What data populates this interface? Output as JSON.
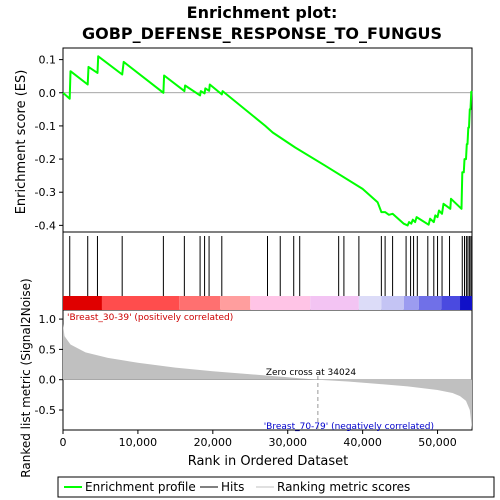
{
  "chart_data": {
    "type": "line",
    "title_line1": "Enrichment plot:",
    "title_line2": "GOBP_DEFENSE_RESPONSE_TO_FUNGUS",
    "x_axis_label": "Rank in Ordered Dataset",
    "x_ticks": [
      0,
      10000,
      20000,
      30000,
      40000,
      50000
    ],
    "x_tick_labels": [
      "0",
      "10,000",
      "20,000",
      "30,000",
      "40,000",
      "50,000"
    ],
    "xlim": [
      0,
      54600
    ],
    "top_panel": {
      "ylabel": "Enrichment score (ES)",
      "ylim": [
        -0.42,
        0.135
      ],
      "y_ticks": [
        0.1,
        0.0,
        -0.1,
        -0.2,
        -0.3,
        -0.4
      ],
      "y_tick_labels": [
        "0.1",
        "0.0",
        "-0.1",
        "-0.2",
        "-0.3",
        "-0.4"
      ],
      "series_name": "Enrichment profile",
      "color": "#00ff00",
      "points": [
        [
          0,
          0
        ],
        [
          900,
          -0.018
        ],
        [
          1000,
          0.065
        ],
        [
          3300,
          0.025
        ],
        [
          3400,
          0.078
        ],
        [
          4600,
          0.06
        ],
        [
          4700,
          0.11
        ],
        [
          7900,
          0.055
        ],
        [
          8100,
          0.093
        ],
        [
          13400,
          0.0
        ],
        [
          13500,
          0.052
        ],
        [
          16200,
          0.005
        ],
        [
          16300,
          0.022
        ],
        [
          18300,
          -0.008
        ],
        [
          18400,
          0.005
        ],
        [
          18900,
          -0.002
        ],
        [
          19000,
          0.013
        ],
        [
          19500,
          0.006
        ],
        [
          19600,
          0.025
        ],
        [
          21200,
          -0.005
        ],
        [
          21300,
          0.005
        ],
        [
          27000,
          -0.1
        ],
        [
          28000,
          -0.12
        ],
        [
          31000,
          -0.165
        ],
        [
          35000,
          -0.22
        ],
        [
          40000,
          -0.29
        ],
        [
          42000,
          -0.33
        ],
        [
          42500,
          -0.36
        ],
        [
          43000,
          -0.36
        ],
        [
          43500,
          -0.368
        ],
        [
          44000,
          -0.365
        ],
        [
          45500,
          -0.395
        ],
        [
          46000,
          -0.4
        ],
        [
          46200,
          -0.39
        ],
        [
          46500,
          -0.395
        ],
        [
          46700,
          -0.383
        ],
        [
          47000,
          -0.39
        ],
        [
          47200,
          -0.375
        ],
        [
          48800,
          -0.398
        ],
        [
          49000,
          -0.38
        ],
        [
          49500,
          -0.39
        ],
        [
          49700,
          -0.37
        ],
        [
          50000,
          -0.375
        ],
        [
          50200,
          -0.355
        ],
        [
          50600,
          -0.365
        ],
        [
          50800,
          -0.335
        ],
        [
          51700,
          -0.35
        ],
        [
          51800,
          -0.32
        ],
        [
          53200,
          -0.35
        ],
        [
          53300,
          -0.24
        ],
        [
          53500,
          -0.24
        ],
        [
          53600,
          -0.2
        ],
        [
          53800,
          -0.2
        ],
        [
          53900,
          -0.155
        ],
        [
          54000,
          -0.155
        ],
        [
          54100,
          -0.105
        ],
        [
          54200,
          -0.105
        ],
        [
          54300,
          -0.05
        ],
        [
          54400,
          -0.05
        ],
        [
          54500,
          0.003
        ],
        [
          54600,
          0.0
        ]
      ]
    },
    "hits": [
      900,
      3300,
      4600,
      7900,
      13400,
      16200,
      18300,
      18900,
      19500,
      21200,
      27300,
      29000,
      30800,
      31600,
      36800,
      37500,
      39500,
      42500,
      43000,
      44000,
      45800,
      46400,
      46800,
      47300,
      48700,
      49500,
      50000,
      50600,
      51600,
      53300,
      53600,
      53850,
      54050,
      54250,
      54450
    ],
    "bottom_panel": {
      "ylabel": "Ranked list metric (Signal2Noise)",
      "ylim": [
        -0.83,
        1.15
      ],
      "y_ticks": [
        1.0,
        0.5,
        0.0,
        -0.5
      ],
      "y_tick_labels": [
        "1.0",
        "0.5",
        "0.0",
        "-0.5"
      ],
      "series_name": "Ranking metric scores",
      "color": "#c0c0c0",
      "points": [
        [
          0,
          0.92
        ],
        [
          200,
          0.72
        ],
        [
          1000,
          0.58
        ],
        [
          3000,
          0.45
        ],
        [
          6000,
          0.36
        ],
        [
          10000,
          0.28
        ],
        [
          15000,
          0.2
        ],
        [
          20000,
          0.14
        ],
        [
          25000,
          0.09
        ],
        [
          30000,
          0.04
        ],
        [
          34024,
          0.0
        ],
        [
          38000,
          -0.03
        ],
        [
          42000,
          -0.07
        ],
        [
          46000,
          -0.11
        ],
        [
          50000,
          -0.17
        ],
        [
          52000,
          -0.22
        ],
        [
          53000,
          -0.27
        ],
        [
          53800,
          -0.35
        ],
        [
          54300,
          -0.5
        ],
        [
          54600,
          -0.82
        ]
      ],
      "zero_cross_label": "Zero cross at 34024",
      "zero_cross_x": 34024,
      "positive_label": "'Breast_30-39' (positively correlated)",
      "negative_label": "'Breast_70-79' (negatively correlated)",
      "positive_color": "#cc0000",
      "negative_color": "#0000cc"
    },
    "heat_bar": {
      "segments": [
        [
          0,
          5200,
          "#e00000"
        ],
        [
          5200,
          15500,
          "#ff4d4d"
        ],
        [
          15500,
          21000,
          "#ff7070"
        ],
        [
          21000,
          25000,
          "#ff9e9e"
        ],
        [
          25000,
          33000,
          "#ffc4e6"
        ],
        [
          33000,
          39500,
          "#f3c4f3"
        ],
        [
          39500,
          42500,
          "#dcdcf8"
        ],
        [
          42500,
          45500,
          "#c4c4f4"
        ],
        [
          45500,
          47500,
          "#9c9cf0"
        ],
        [
          47500,
          50500,
          "#7070e8"
        ],
        [
          50500,
          53000,
          "#4a4ae0"
        ],
        [
          53000,
          54600,
          "#1010c8"
        ]
      ]
    },
    "legend": [
      {
        "label": "Enrichment profile",
        "color": "#00ff00"
      },
      {
        "label": "Hits",
        "color": "#000000"
      },
      {
        "label": "Ranking metric scores",
        "color": "#c0c0c0"
      }
    ]
  }
}
